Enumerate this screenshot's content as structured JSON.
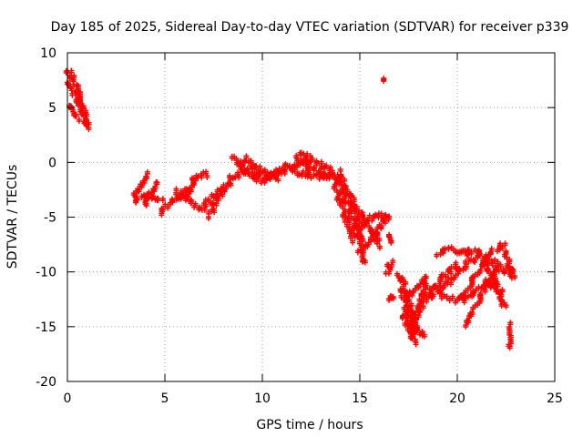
{
  "chart_data": {
    "type": "scatter",
    "title": "Day 185 of 2025, Sidereal Day-to-day VTEC variation (SDTVAR) for receiver p339",
    "xlabel": "GPS time / hours",
    "ylabel": "SDTVAR / TECUs",
    "xlim": [
      0,
      25
    ],
    "ylim": [
      -20,
      10
    ],
    "xticks": [
      "0",
      "5",
      "10",
      "15",
      "20",
      "25"
    ],
    "yticks": [
      "10",
      "5",
      "0",
      "-5",
      "-10",
      "-15",
      "-20"
    ],
    "grid": true,
    "marker": "+",
    "colors": {
      "series": "#ff0000",
      "grid": "#a0a0a0",
      "axis": "#000000"
    },
    "tracks": [
      [
        [
          0.0,
          8.5
        ],
        [
          0.3,
          7.6
        ],
        [
          0.6,
          6.4
        ],
        [
          0.8,
          5.2
        ],
        [
          1.0,
          3.5
        ]
      ],
      [
        [
          0.05,
          7.3
        ],
        [
          0.3,
          6.6
        ],
        [
          0.55,
          5.6
        ],
        [
          0.8,
          4.6
        ],
        [
          1.05,
          3.1
        ]
      ],
      [
        [
          0.0,
          5.2
        ],
        [
          0.3,
          4.7
        ],
        [
          0.5,
          4.1
        ]
      ],
      [
        [
          16.2,
          7.5
        ],
        [
          16.3,
          7.4
        ]
      ],
      [
        [
          3.5,
          -3.0
        ],
        [
          3.9,
          -2.0
        ],
        [
          4.0,
          -1.0
        ]
      ],
      [
        [
          3.4,
          -3.5
        ],
        [
          3.8,
          -3.2
        ],
        [
          4.2,
          -2.8
        ],
        [
          4.8,
          -3.4
        ]
      ],
      [
        [
          3.9,
          -3.8
        ],
        [
          4.3,
          -2.5
        ],
        [
          4.5,
          -1.8
        ]
      ],
      [
        [
          4.8,
          -4.5
        ],
        [
          5.3,
          -3.6
        ],
        [
          5.8,
          -3.0
        ],
        [
          6.2,
          -2.2
        ]
      ],
      [
        [
          5.5,
          -2.5
        ],
        [
          6.0,
          -3.1
        ],
        [
          6.5,
          -3.7
        ],
        [
          7.0,
          -4.2
        ]
      ],
      [
        [
          6.0,
          -3.2
        ],
        [
          6.4,
          -1.8
        ],
        [
          6.6,
          -1.2
        ],
        [
          7.2,
          -1.0
        ]
      ],
      [
        [
          7.0,
          -3.8
        ],
        [
          7.4,
          -3.2
        ],
        [
          7.8,
          -2.5
        ],
        [
          8.0,
          -2.1
        ]
      ],
      [
        [
          7.3,
          -4.8
        ],
        [
          7.6,
          -3.6
        ],
        [
          7.9,
          -2.6
        ],
        [
          8.3,
          -1.8
        ]
      ],
      [
        [
          8.3,
          -1.5
        ],
        [
          8.9,
          -0.9
        ],
        [
          9.5,
          -0.5
        ],
        [
          10.2,
          -1.5
        ],
        [
          10.8,
          -0.8
        ]
      ],
      [
        [
          8.8,
          -0.2
        ],
        [
          9.2,
          0.4
        ],
        [
          9.7,
          -0.4
        ],
        [
          10.2,
          -1.0
        ],
        [
          10.8,
          -1.4
        ]
      ],
      [
        [
          8.5,
          0.5
        ],
        [
          8.9,
          -0.3
        ],
        [
          9.4,
          -1.1
        ],
        [
          10.0,
          -1.6
        ],
        [
          10.6,
          -1.2
        ],
        [
          11.3,
          -0.5
        ]
      ],
      [
        [
          10.6,
          -0.8
        ],
        [
          11.2,
          -0.6
        ],
        [
          11.6,
          -0.2
        ],
        [
          12.0,
          0.3
        ],
        [
          12.4,
          -0.6
        ]
      ],
      [
        [
          11.7,
          0.5
        ],
        [
          12.0,
          0.8
        ],
        [
          12.4,
          -0.2
        ],
        [
          12.9,
          -0.8
        ],
        [
          13.4,
          -1.4
        ]
      ],
      [
        [
          11.2,
          -0.2
        ],
        [
          11.8,
          -0.9
        ],
        [
          12.4,
          -1.1
        ],
        [
          13.0,
          -1.2
        ],
        [
          13.5,
          -1.0
        ]
      ],
      [
        [
          12.2,
          0.6
        ],
        [
          12.7,
          0.2
        ],
        [
          13.2,
          -0.4
        ],
        [
          13.6,
          -0.8
        ]
      ],
      [
        [
          13.5,
          -1.0
        ],
        [
          13.9,
          -1.5
        ],
        [
          14.2,
          -2.8
        ],
        [
          14.6,
          -4.8
        ],
        [
          15.0,
          -6.8
        ]
      ],
      [
        [
          13.7,
          -2.0
        ],
        [
          14.0,
          -3.5
        ],
        [
          14.3,
          -5.0
        ],
        [
          14.5,
          -6.0
        ],
        [
          14.7,
          -7.0
        ]
      ],
      [
        [
          13.9,
          -0.8
        ],
        [
          14.2,
          -2.0
        ],
        [
          14.6,
          -3.2
        ],
        [
          14.9,
          -5.2
        ],
        [
          15.1,
          -7.8
        ],
        [
          15.2,
          -9.1
        ]
      ],
      [
        [
          14.5,
          -3.5
        ],
        [
          15.0,
          -4.5
        ],
        [
          15.4,
          -5.6
        ],
        [
          15.8,
          -6.8
        ],
        [
          16.0,
          -7.5
        ]
      ],
      [
        [
          15.0,
          -8.0
        ],
        [
          15.4,
          -7.4
        ],
        [
          15.8,
          -6.5
        ],
        [
          16.1,
          -5.6
        ],
        [
          16.4,
          -4.8
        ]
      ],
      [
        [
          14.8,
          -6.0
        ],
        [
          15.2,
          -5.6
        ],
        [
          15.6,
          -5.0
        ],
        [
          16.0,
          -4.6
        ],
        [
          16.4,
          -5.1
        ]
      ],
      [
        [
          16.5,
          -7.3
        ],
        [
          16.6,
          -6.5
        ]
      ],
      [
        [
          16.4,
          -10.0
        ],
        [
          16.6,
          -9.0
        ]
      ],
      [
        [
          16.6,
          -12.5
        ],
        [
          16.8,
          -12.1
        ]
      ],
      [
        [
          17.0,
          -10.0
        ],
        [
          17.3,
          -11.3
        ],
        [
          17.6,
          -13.2
        ],
        [
          17.9,
          -15.2
        ]
      ],
      [
        [
          17.1,
          -11.5
        ],
        [
          17.4,
          -12.7
        ],
        [
          17.7,
          -14.1
        ],
        [
          17.9,
          -15.5
        ]
      ],
      [
        [
          17.3,
          -13.4
        ],
        [
          17.7,
          -14.8
        ],
        [
          18.0,
          -15.5
        ],
        [
          18.4,
          -15.6
        ]
      ],
      [
        [
          17.2,
          -14.1
        ],
        [
          17.5,
          -14.8
        ],
        [
          17.8,
          -16.5
        ]
      ],
      [
        [
          17.6,
          -15.4
        ],
        [
          17.9,
          -14.0
        ],
        [
          18.2,
          -12.2
        ],
        [
          18.4,
          -11.0
        ]
      ],
      [
        [
          17.5,
          -12.0
        ],
        [
          17.9,
          -11.4
        ],
        [
          18.3,
          -10.4
        ]
      ],
      [
        [
          18.0,
          -13.5
        ],
        [
          18.5,
          -12.1
        ],
        [
          19.0,
          -10.9
        ],
        [
          19.5,
          -10.0
        ],
        [
          20.0,
          -9.2
        ]
      ],
      [
        [
          18.6,
          -12.3
        ],
        [
          19.1,
          -11.6
        ],
        [
          19.8,
          -10.4
        ],
        [
          20.5,
          -9.1
        ],
        [
          21.2,
          -8.4
        ]
      ],
      [
        [
          19.0,
          -8.5
        ],
        [
          19.6,
          -7.8
        ],
        [
          20.3,
          -8.2
        ],
        [
          21.0,
          -8.0
        ],
        [
          21.5,
          -9.2
        ],
        [
          22.0,
          -11.1
        ]
      ],
      [
        [
          19.2,
          -12.0
        ],
        [
          19.8,
          -12.5
        ],
        [
          20.4,
          -12.2
        ],
        [
          21.0,
          -11.5
        ],
        [
          21.6,
          -11.0
        ],
        [
          22.3,
          -11.8
        ]
      ],
      [
        [
          20.3,
          -12.6
        ],
        [
          20.7,
          -11.1
        ],
        [
          21.1,
          -9.6
        ],
        [
          21.5,
          -8.5
        ],
        [
          21.8,
          -8.0
        ]
      ],
      [
        [
          20.5,
          -14.8
        ],
        [
          20.9,
          -13.4
        ],
        [
          21.3,
          -11.9
        ],
        [
          21.6,
          -10.4
        ],
        [
          22.0,
          -9.4
        ]
      ],
      [
        [
          21.5,
          -8.6
        ],
        [
          21.9,
          -9.1
        ],
        [
          22.3,
          -9.8
        ],
        [
          22.7,
          -10.1
        ]
      ],
      [
        [
          21.8,
          -10.2
        ],
        [
          22.2,
          -12.1
        ],
        [
          22.4,
          -13.1
        ]
      ],
      [
        [
          22.0,
          -8.0
        ],
        [
          22.3,
          -7.4
        ],
        [
          22.5,
          -8.1
        ],
        [
          22.7,
          -9.5
        ],
        [
          22.9,
          -10.5
        ]
      ],
      [
        [
          22.5,
          -9.4
        ],
        [
          22.9,
          -9.6
        ]
      ],
      [
        [
          22.6,
          -16.8
        ],
        [
          22.7,
          -15.8
        ],
        [
          22.8,
          -14.8
        ]
      ]
    ]
  }
}
